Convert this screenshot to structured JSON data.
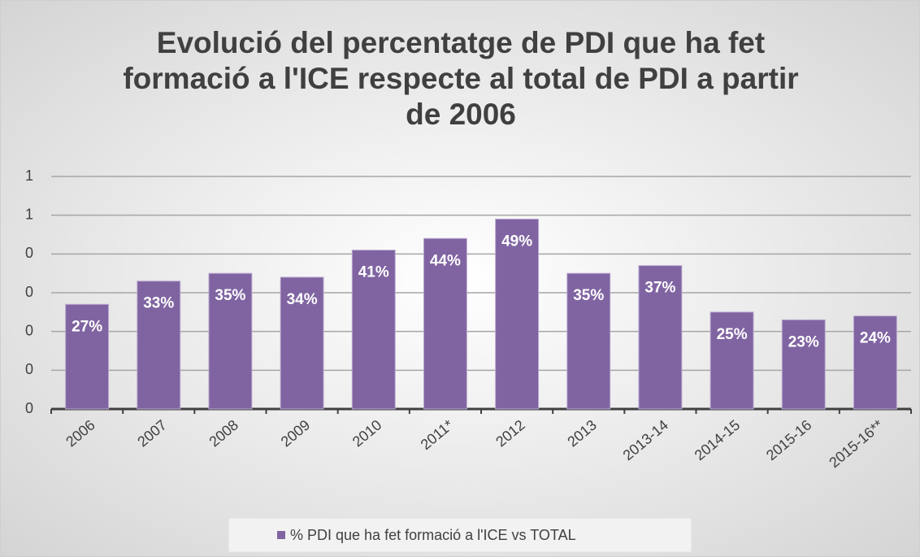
{
  "chart_data": {
    "type": "bar",
    "title": "Evolució del percentatge de PDI que ha fet formació a l'ICE respecte al total de PDI a partir de 2006",
    "categories": [
      "2006",
      "2007",
      "2008",
      "2009",
      "2010",
      "2011*",
      "2012",
      "2013",
      "2013-14",
      "2014-15",
      "2015-16",
      "2015-16**"
    ],
    "series": [
      {
        "name": "% PDI que ha fet formació a l'ICE vs TOTAL",
        "color": "#8064a2",
        "values": [
          0.27,
          0.33,
          0.35,
          0.34,
          0.41,
          0.44,
          0.49,
          0.35,
          0.37,
          0.25,
          0.23,
          0.24
        ],
        "value_labels": [
          "27%",
          "33%",
          "35%",
          "34%",
          "41%",
          "44%",
          "49%",
          "35%",
          "37%",
          "25%",
          "23%",
          "24%"
        ]
      }
    ],
    "ylim": [
      0,
      0.6
    ],
    "yticks": [
      0,
      {
        "value": 0.1,
        "label": "0"
      },
      {
        "value": 0.2,
        "label": "0"
      },
      {
        "value": 0.3,
        "label": "0"
      },
      {
        "value": 0.4,
        "label": "0"
      },
      {
        "value": 0.5,
        "label": "1"
      },
      {
        "value": 0.6,
        "label": "1"
      }
    ],
    "grid": true,
    "legend": "bottom"
  }
}
